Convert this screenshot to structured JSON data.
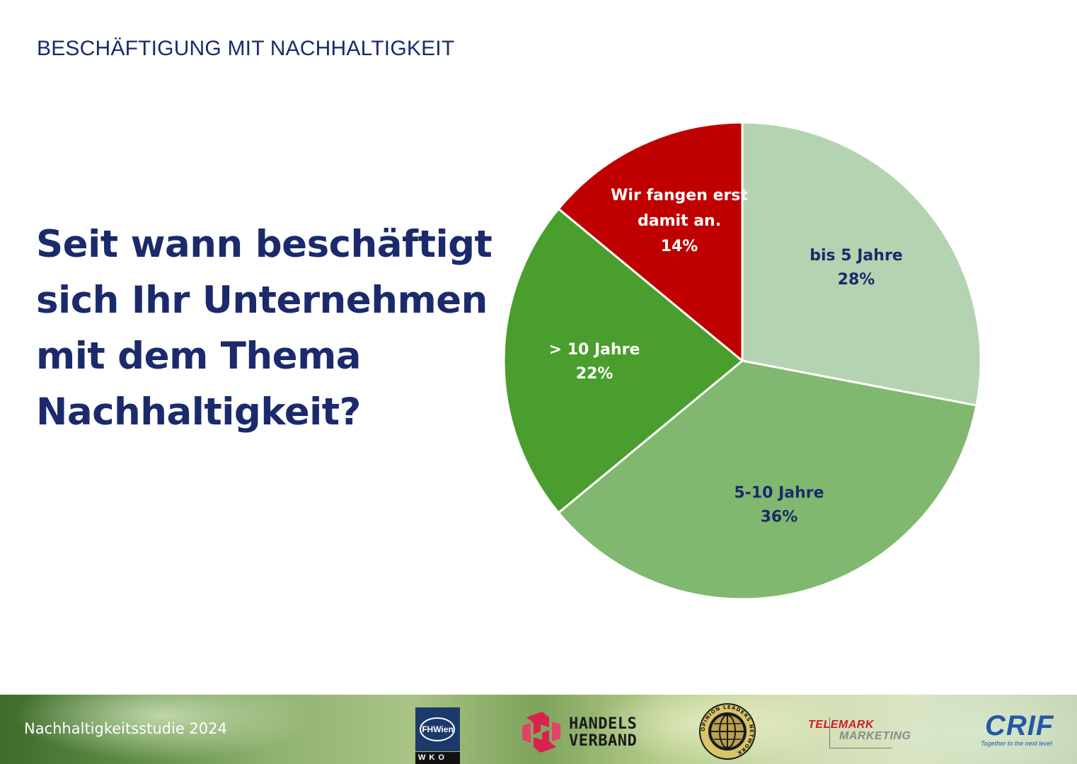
{
  "header": {
    "section_title": "BESCHÄFTIGUNG MIT NACHHALTIGKEIT"
  },
  "question": {
    "lines": [
      "Seit wann beschäftigt",
      "sich Ihr Unternehmen",
      "mit dem Thema",
      "Nachhaltigkeit?"
    ]
  },
  "chart_data": {
    "type": "pie",
    "title": "Seit wann beschäftigt sich Ihr Unternehmen mit dem Thema Nachhaltigkeit?",
    "unit": "%",
    "start_angle_deg": 0,
    "direction": "clockwise",
    "slices": [
      {
        "label": "bis 5 Jahre",
        "value": 28,
        "value_label": "28%",
        "color": "#b4d3b0",
        "label_color": "#1b2a6b"
      },
      {
        "label": "5-10 Jahre",
        "value": 36,
        "value_label": "36%",
        "color": "#80b86f",
        "label_color": "#1b2a6b"
      },
      {
        "label": "> 10 Jahre",
        "value": 22,
        "value_label": "22%",
        "color": "#4a9e2d",
        "label_color": "#ffffff"
      },
      {
        "label": "Wir fangen erst damit an.",
        "label_lines": [
          "Wir fangen erst",
          "damit an."
        ],
        "value": 14,
        "value_label": "14%",
        "color": "#c00000",
        "label_color": "#ffffff"
      }
    ]
  },
  "footer": {
    "study_title": "Nachhaltigkeitsstudie 2024",
    "logos": {
      "fhwien": {
        "top": "FHWien",
        "bottom": "WKO"
      },
      "handelsverband": {
        "line1": "HANDELS",
        "line2": "VERBAND"
      },
      "oln": {
        "text": "OPINION LEADERS NETWORK"
      },
      "telemark": {
        "line1": "TELEMARK",
        "line2": "MARKETING"
      },
      "crif": {
        "name": "CRIF",
        "tagline": "Together to the next level"
      }
    }
  },
  "colors": {
    "primary_text": "#1b2a6b",
    "background": "#ffffff"
  }
}
